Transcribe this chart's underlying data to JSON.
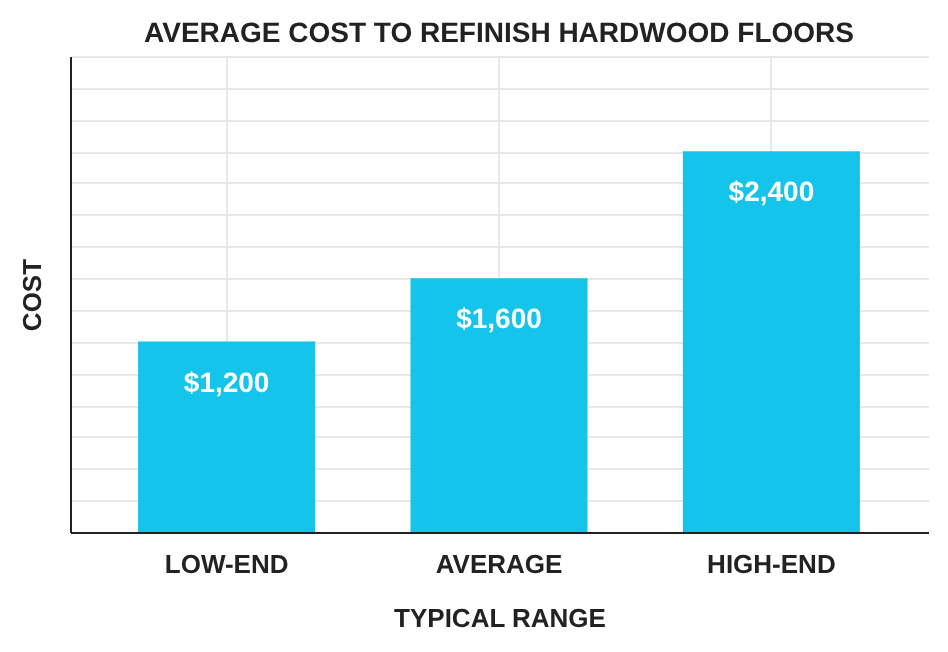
{
  "chart_data": {
    "type": "bar",
    "title": "AVERAGE COST TO REFINISH HARDWOOD FLOORS",
    "xlabel": "TYPICAL RANGE",
    "ylabel": "COST",
    "categories": [
      "LOW-END",
      "AVERAGE",
      "HIGH-END"
    ],
    "values": [
      1200,
      1600,
      2400
    ],
    "value_labels": [
      "$1,200",
      "$1,600",
      "$2,400"
    ],
    "color": "#14c4ea",
    "ylim": [
      0,
      3000
    ],
    "grid": true,
    "tick_labels": "x"
  }
}
